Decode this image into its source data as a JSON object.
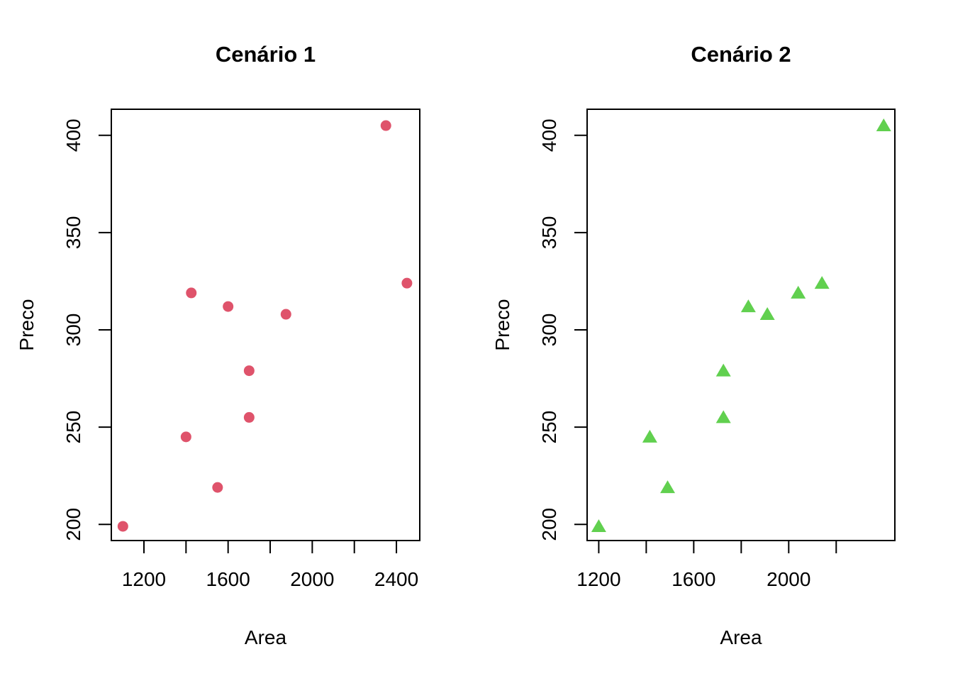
{
  "chart_data": [
    {
      "type": "scatter",
      "title": "Cenário 1",
      "xlabel": "Area",
      "ylabel": "Preco",
      "marker": "circle",
      "color": "#DF536B",
      "points": [
        [
          1100,
          199
        ],
        [
          1400,
          245
        ],
        [
          1425,
          319
        ],
        [
          1550,
          219
        ],
        [
          1600,
          312
        ],
        [
          1700,
          255
        ],
        [
          1700,
          279
        ],
        [
          1875,
          308
        ],
        [
          2350,
          405
        ],
        [
          2450,
          324
        ]
      ],
      "xlim": [
        1045,
        2511
      ],
      "ylim": [
        191.7,
        413.4
      ],
      "xticks": [
        1200,
        1400,
        1600,
        1800,
        2000,
        2200,
        2400
      ],
      "xtick_labels": [
        "1200",
        "",
        "1600",
        "",
        "2000",
        "",
        "2400"
      ],
      "yticks": [
        200,
        250,
        300,
        350,
        400
      ],
      "ytick_labels": [
        "200",
        "250",
        "300",
        "350",
        "400"
      ],
      "grid": false,
      "legend": "none"
    },
    {
      "type": "scatter",
      "title": "Cenário 2",
      "xlabel": "Area",
      "ylabel": "Preco",
      "marker": "triangle",
      "color": "#61D04F",
      "points": [
        [
          1200,
          199
        ],
        [
          1415,
          245
        ],
        [
          1490,
          219
        ],
        [
          1725,
          255
        ],
        [
          1725,
          279
        ],
        [
          1830,
          312
        ],
        [
          1910,
          308
        ],
        [
          2040,
          319
        ],
        [
          2140,
          324
        ],
        [
          2400,
          405
        ]
      ],
      "xlim": [
        1151,
        2447
      ],
      "ylim": [
        191.7,
        413.4
      ],
      "xticks": [
        1200,
        1400,
        1600,
        1800,
        2000,
        2200
      ],
      "xtick_labels": [
        "1200",
        "",
        "1600",
        "",
        "2000",
        ""
      ],
      "yticks": [
        200,
        250,
        300,
        350,
        400
      ],
      "ytick_labels": [
        "200",
        "250",
        "300",
        "350",
        "400"
      ],
      "grid": false,
      "legend": "none"
    }
  ]
}
